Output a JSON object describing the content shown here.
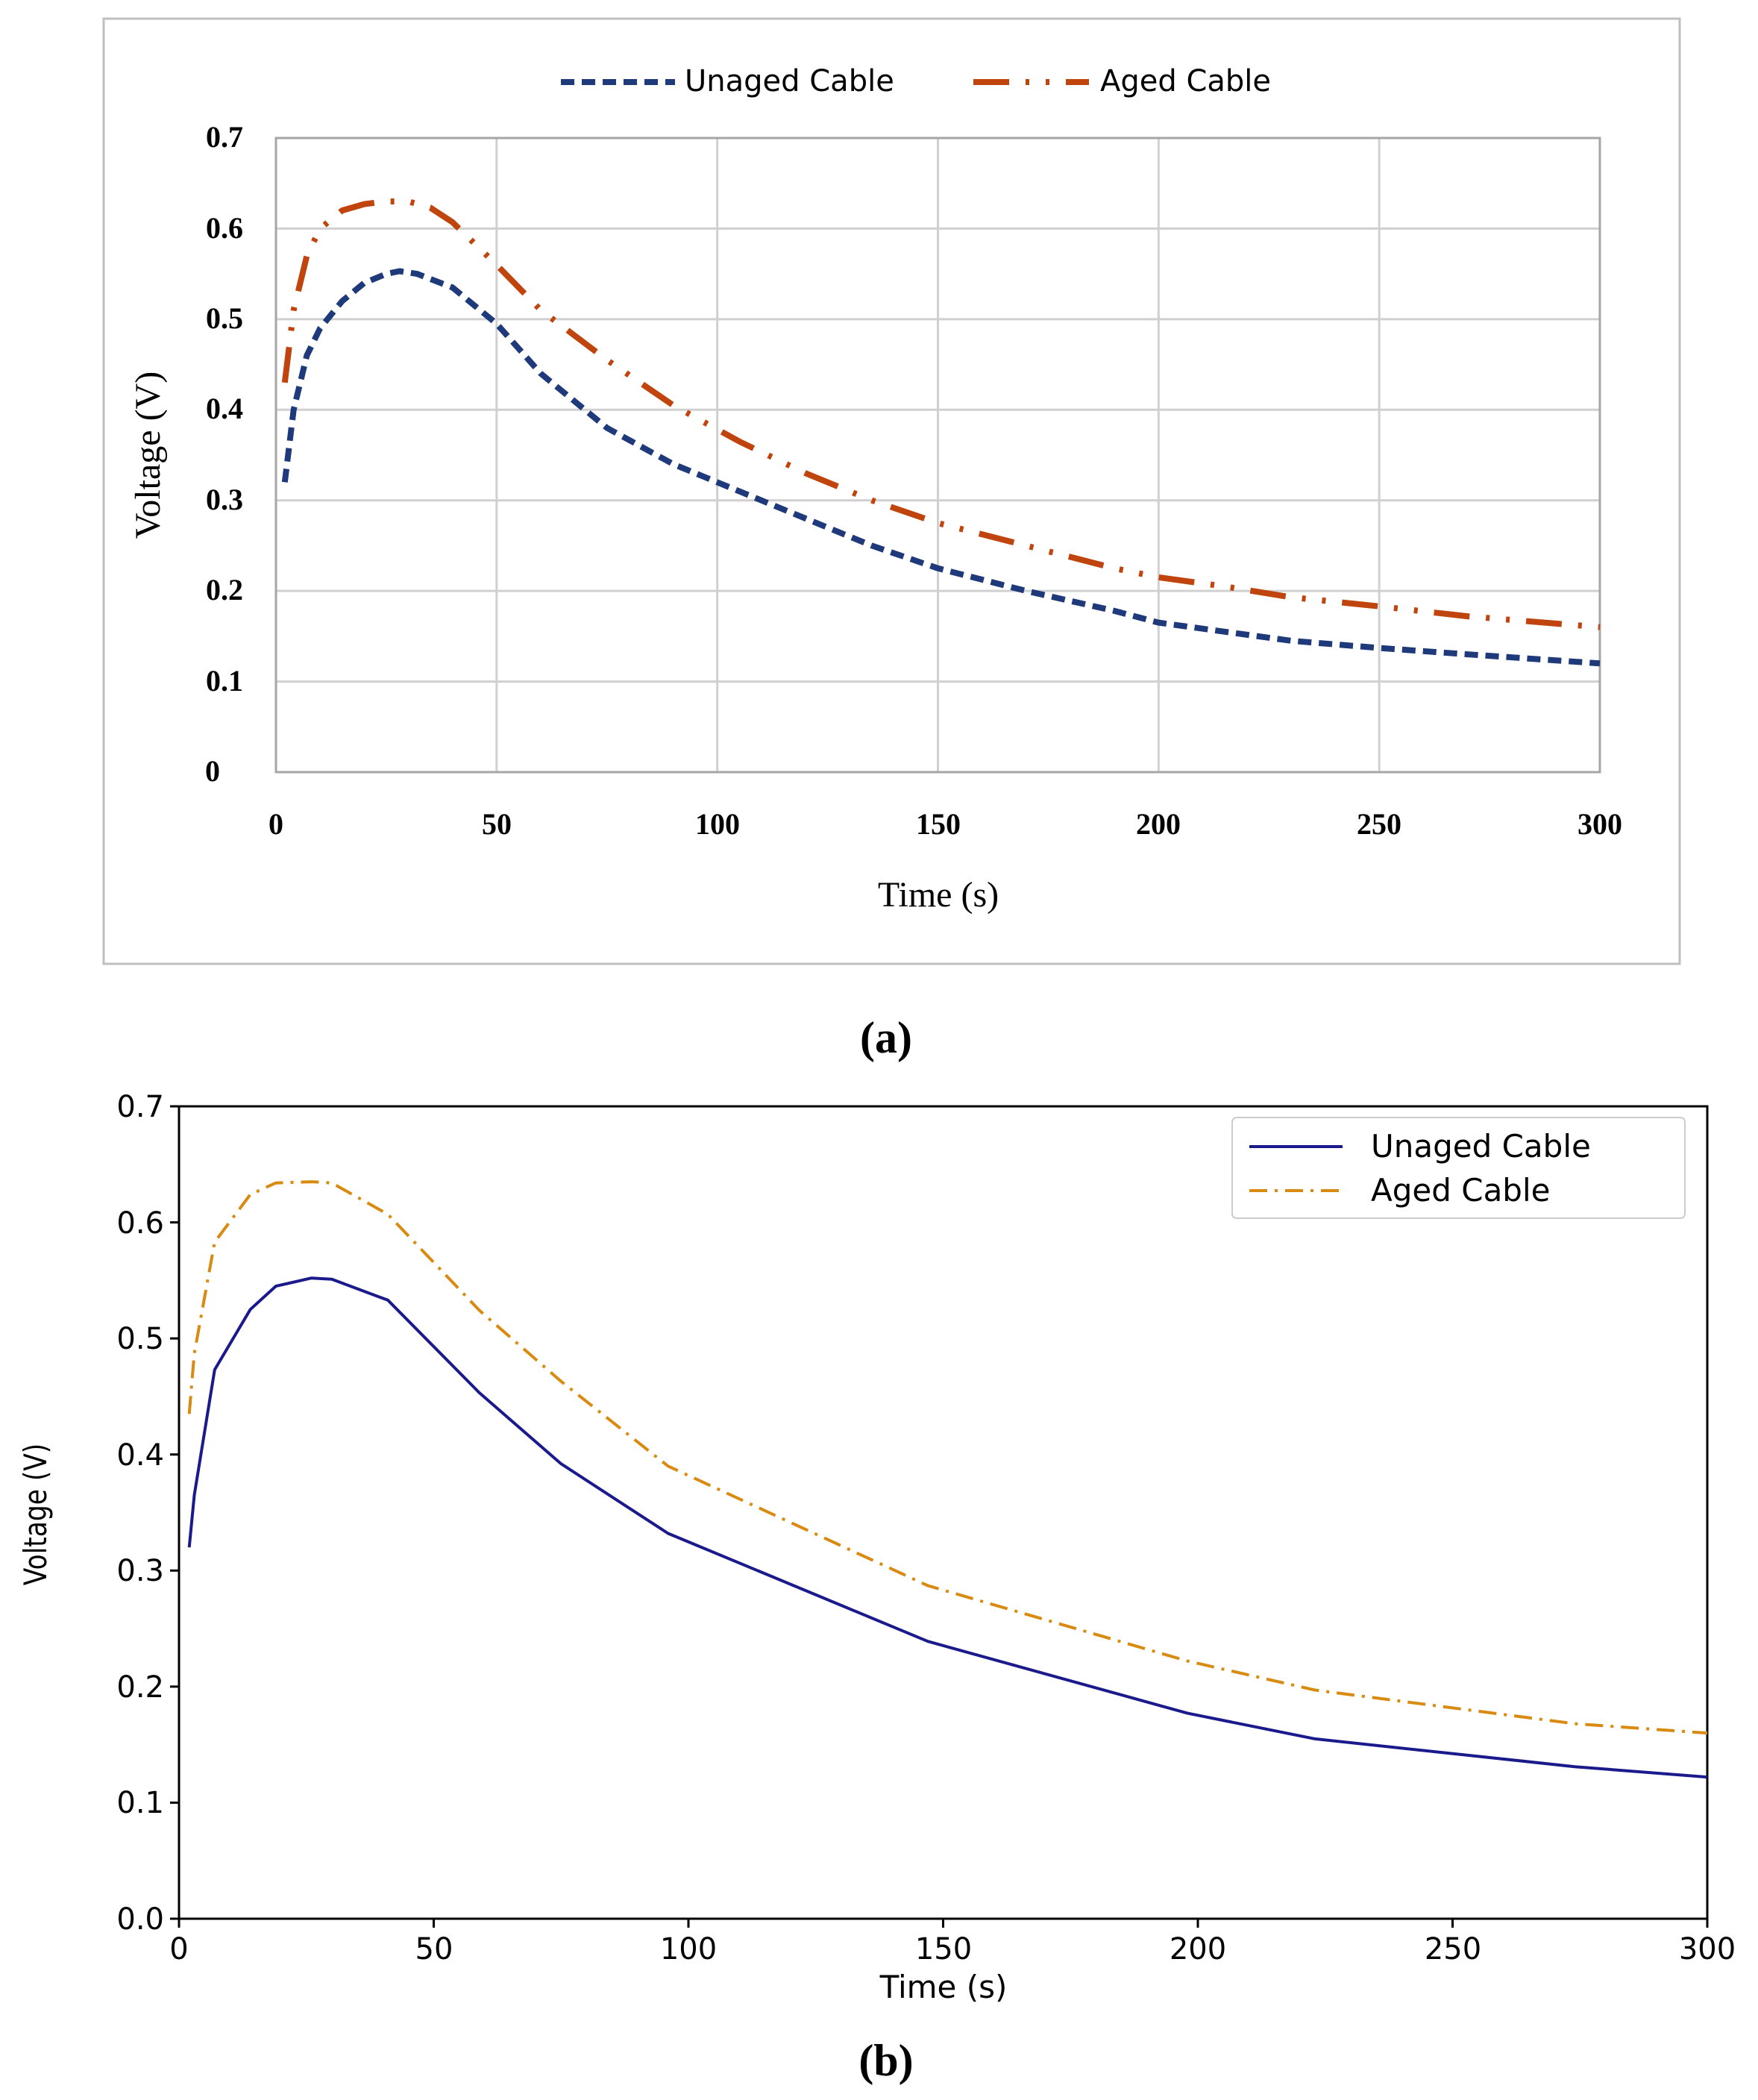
{
  "chart_data": [
    {
      "panel_label": "(a)",
      "type": "line",
      "title": "",
      "xlabel": "Time (s)",
      "ylabel": "Voltage (V)",
      "xlim": [
        0,
        300
      ],
      "ylim": [
        0,
        0.7
      ],
      "x_ticks": [
        "0",
        "50",
        "100",
        "150",
        "200",
        "250",
        "300"
      ],
      "y_ticks": [
        "0",
        "0.1",
        "0.2",
        "0.3",
        "0.4",
        "0.5",
        "0.6",
        "0.7"
      ],
      "grid": true,
      "legend_position": "top-center",
      "series": [
        {
          "name": "Unaged Cable",
          "color": "#1f3a7a",
          "style": "dashed",
          "x": [
            2,
            4,
            7,
            10,
            15,
            20,
            25,
            28,
            32,
            40,
            50,
            60,
            75,
            90,
            105,
            120,
            135,
            150,
            170,
            190,
            200,
            215,
            230,
            250,
            270,
            300
          ],
          "y": [
            0.32,
            0.4,
            0.46,
            0.49,
            0.52,
            0.54,
            0.55,
            0.553,
            0.55,
            0.535,
            0.495,
            0.44,
            0.38,
            0.34,
            0.31,
            0.28,
            0.25,
            0.225,
            0.2,
            0.178,
            0.165,
            0.155,
            0.145,
            0.137,
            0.13,
            0.12
          ]
        },
        {
          "name": "Aged Cable",
          "color": "#c0440e",
          "style": "long-dash-dot-dot",
          "x": [
            2,
            4,
            7,
            10,
            15,
            20,
            25,
            30,
            35,
            40,
            50,
            60,
            75,
            90,
            105,
            120,
            135,
            150,
            170,
            190,
            200,
            215,
            230,
            250,
            270,
            300
          ],
          "y": [
            0.43,
            0.51,
            0.57,
            0.6,
            0.62,
            0.627,
            0.63,
            0.63,
            0.623,
            0.607,
            0.56,
            0.51,
            0.455,
            0.405,
            0.365,
            0.33,
            0.3,
            0.275,
            0.25,
            0.225,
            0.215,
            0.205,
            0.193,
            0.183,
            0.172,
            0.16
          ]
        }
      ]
    },
    {
      "panel_label": "(b)",
      "type": "line",
      "title": "",
      "xlabel": "Time (s)",
      "ylabel": "Voltage (V)",
      "xlim": [
        0,
        300
      ],
      "ylim": [
        0,
        0.7
      ],
      "x_ticks": [
        "0",
        "50",
        "100",
        "150",
        "200",
        "250",
        "300"
      ],
      "y_ticks": [
        "0.0",
        "0.1",
        "0.2",
        "0.3",
        "0.4",
        "0.5",
        "0.6",
        "0.7"
      ],
      "grid": false,
      "legend_position": "top-right",
      "series": [
        {
          "name": "Unaged Cable",
          "color": "#1a1a8c",
          "style": "solid",
          "x": [
            2,
            3,
            7,
            14,
            19,
            26,
            30,
            41,
            59,
            75,
            96,
            147,
            198,
            223,
            274,
            300
          ],
          "y": [
            0.32,
            0.365,
            0.473,
            0.525,
            0.545,
            0.552,
            0.551,
            0.533,
            0.453,
            0.392,
            0.332,
            0.239,
            0.177,
            0.155,
            0.131,
            0.122
          ]
        },
        {
          "name": "Aged Cable",
          "color": "#d98a10",
          "style": "dash-dot",
          "x": [
            2,
            3,
            7,
            14,
            19,
            26,
            30,
            41,
            59,
            75,
            96,
            147,
            198,
            223,
            274,
            300
          ],
          "y": [
            0.435,
            0.487,
            0.583,
            0.624,
            0.634,
            0.635,
            0.634,
            0.607,
            0.524,
            0.463,
            0.39,
            0.287,
            0.222,
            0.197,
            0.168,
            0.16
          ]
        }
      ]
    }
  ]
}
